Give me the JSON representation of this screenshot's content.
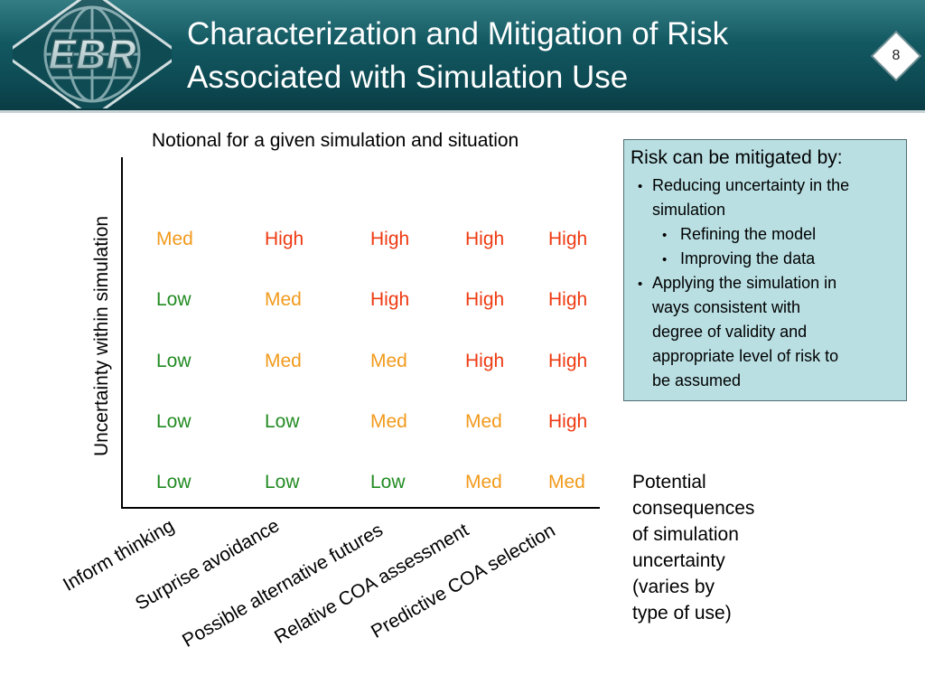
{
  "slide": {
    "title_line1": "Characterization and Mitigation of Risk",
    "title_line2": "Associated with Simulation Use",
    "number": "8",
    "logo_text": "EBR"
  },
  "matrix": {
    "subtitle": "Notional for a given simulation and situation",
    "y_axis_label": "Uncertainty within simulation",
    "x_categories": [
      "Inform thinking",
      "Surprise avoidance",
      "Possible alternative futures",
      "Relative COA assessment",
      "Predictive COA selection"
    ],
    "rows": [
      [
        "Med",
        "High",
        "High",
        "High",
        "High"
      ],
      [
        "Low",
        "Med",
        "High",
        "High",
        "High"
      ],
      [
        "Low",
        "Med",
        "Med",
        "High",
        "High"
      ],
      [
        "Low",
        "Low",
        "Med",
        "Med",
        "High"
      ],
      [
        "Low",
        "Low",
        "Low",
        "Med",
        "Med"
      ]
    ],
    "colors": {
      "Low": "#228b22",
      "Med": "#f29a1c",
      "High": "#ee3a12"
    }
  },
  "mitigation": {
    "title": "Risk can be mitigated by:",
    "bullet_1_line1": "Reducing uncertainty in the",
    "bullet_1_line2": "simulation",
    "sub_bullet_1": "Refining the model",
    "sub_bullet_2": "Improving the data",
    "bullet_2_line1": "Applying the simulation in",
    "bullet_2_line2": "ways consistent with",
    "bullet_2_line3": "degree of validity and",
    "bullet_2_line4": "appropriate level of risk to",
    "bullet_2_line5": "be assumed",
    "bullet_char": "•",
    "bg_color": "#b9dfe3"
  },
  "consequences": {
    "lines": [
      "Potential",
      "consequences",
      "of simulation",
      "uncertainty",
      "(varies by",
      "type of use)"
    ]
  }
}
